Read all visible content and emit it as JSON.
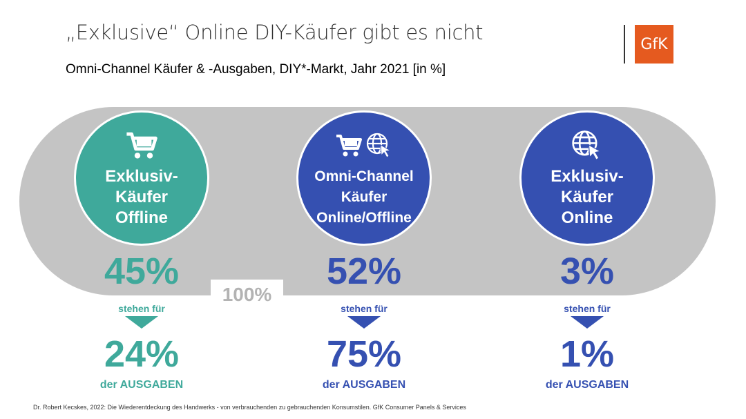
{
  "title": "„Exklusive“ Online DIY-Käufer gibt es nicht",
  "subtitle": "Omni-Channel Käufer & -Ausgaben, DIY*-Markt, Jahr 2021  [in %]",
  "logo": "GfK",
  "total_label": "100%",
  "colors": {
    "teal": "#3fa99b",
    "blue": "#3550b1",
    "gray": "#c4c4c4",
    "logo": "#e55a1f"
  },
  "segments": [
    {
      "label_lines": [
        "Exklusiv-",
        "Käufer",
        "Offline"
      ],
      "icons": [
        "shopping-cart-icon"
      ],
      "buyers_pct": "45%",
      "link_text": "stehen für",
      "spend_pct": "24%",
      "spend_label": "der AUSGABEN"
    },
    {
      "label_lines": [
        "Omni-Channel",
        "Käufer",
        "Online/Offline"
      ],
      "icons": [
        "shopping-cart-icon",
        "globe-cursor-icon"
      ],
      "buyers_pct": "52%",
      "link_text": "stehen für",
      "spend_pct": "75%",
      "spend_label": "der AUSGABEN"
    },
    {
      "label_lines": [
        "Exklusiv-",
        "Käufer",
        "Online"
      ],
      "icons": [
        "globe-cursor-icon"
      ],
      "buyers_pct": "3%",
      "link_text": "stehen für",
      "spend_pct": "1%",
      "spend_label": "der AUSGABEN"
    }
  ],
  "footer": "Dr. Robert Kecskes, 2022: Die Wiederentdeckung des Handwerks - von verbrauchenden zu gebrauchenden Konsumstilen. GfK Consumer Panels & Services"
}
